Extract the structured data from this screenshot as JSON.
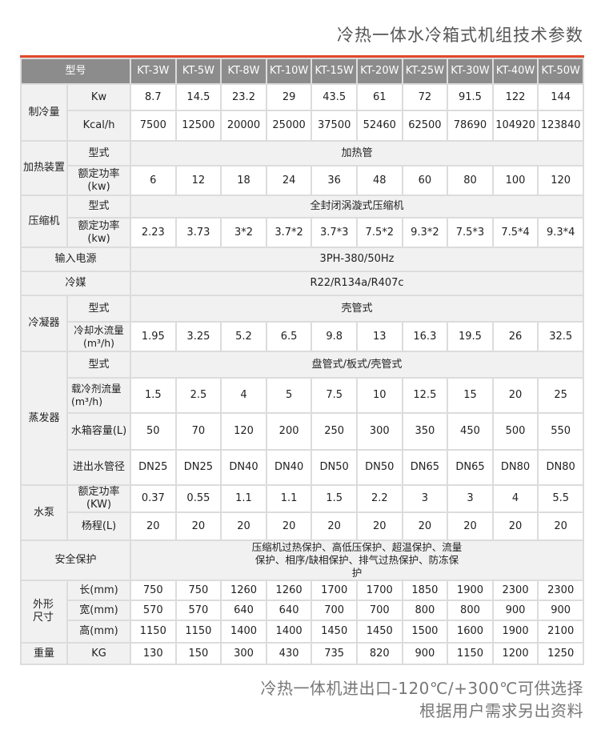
{
  "title": "冷热一体水冷箱式机组技术参数",
  "colors": {
    "accent": "#e2482a",
    "header_bg": "#8c8c8c",
    "label_bg": "#f1f1f1"
  },
  "header": {
    "label": "型号",
    "models": [
      "KT-3W",
      "KT-5W",
      "KT-8W",
      "KT-10W",
      "KT-15W",
      "KT-20W",
      "KT-25W",
      "KT-30W",
      "KT-40W",
      "KT-50W"
    ]
  },
  "groups": [
    {
      "name": "制冷量",
      "rows": [
        {
          "label": "Kw",
          "values": [
            "8.7",
            "14.5",
            "23.2",
            "29",
            "43.5",
            "61",
            "72",
            "91.5",
            "122",
            "144"
          ]
        },
        {
          "label": "Kcal/h",
          "values": [
            "7500",
            "12500",
            "20000",
            "25000",
            "37500",
            "52460",
            "62500",
            "78690",
            "104920",
            "123840"
          ]
        }
      ]
    },
    {
      "name": "加热装置",
      "rows": [
        {
          "label": "型式",
          "merged": "加热管"
        },
        {
          "label": "额定功率(kw)",
          "values": [
            "6",
            "12",
            "18",
            "24",
            "36",
            "48",
            "60",
            "80",
            "100",
            "120"
          ]
        }
      ]
    },
    {
      "name": "压缩机",
      "rows": [
        {
          "label": "型式",
          "merged": "全封闭涡漩式压缩机"
        },
        {
          "label": "额定功率(kw)",
          "values": [
            "2.23",
            "3.73",
            "3*2",
            "3.7*2",
            "3.7*3",
            "7.5*2",
            "9.3*2",
            "7.5*3",
            "7.5*4",
            "9.3*4"
          ]
        }
      ]
    },
    {
      "name": "输入电源",
      "merged": "3PH-380/50Hz"
    },
    {
      "name": "冷媒",
      "merged": "R22/R134a/R407c"
    },
    {
      "name": "冷凝器",
      "rows": [
        {
          "label": "型式",
          "merged": "壳管式"
        },
        {
          "label": "冷却水流量(m³/h)",
          "values": [
            "1.95",
            "3.25",
            "5.2",
            "6.5",
            "9.8",
            "13",
            "16.3",
            "19.5",
            "26",
            "32.5"
          ]
        }
      ]
    },
    {
      "name": "蒸发器",
      "rows": [
        {
          "label": "型式",
          "merged": "盘管式/板式/壳管式"
        },
        {
          "label": "载冷剂流量(m³/h)",
          "values": [
            "1.5",
            "2.5",
            "4",
            "5",
            "7.5",
            "10",
            "12.5",
            "15",
            "20",
            "25"
          ]
        },
        {
          "label": "水箱容量(L)",
          "values": [
            "50",
            "70",
            "120",
            "200",
            "250",
            "300",
            "350",
            "450",
            "500",
            "550"
          ]
        },
        {
          "label": "进出水管径",
          "values": [
            "DN25",
            "DN25",
            "DN40",
            "DN40",
            "DN50",
            "DN50",
            "DN65",
            "DN65",
            "DN80",
            "DN80"
          ]
        }
      ]
    },
    {
      "name": "水泵",
      "rows": [
        {
          "label": "额定功率(KW)",
          "values": [
            "0.37",
            "0.55",
            "1.1",
            "1.1",
            "1.5",
            "2.2",
            "3",
            "3",
            "4",
            "5.5"
          ]
        },
        {
          "label": "杨程(L)",
          "values": [
            "20",
            "20",
            "20",
            "20",
            "20",
            "20",
            "20",
            "20",
            "20",
            "20"
          ]
        }
      ]
    },
    {
      "name": "安全保护",
      "merged": "压缩机过热保护、高低压保护、超温保护、流量保护、相序/缺相保护、排气过热保护、防冻保护"
    },
    {
      "name": "外形尺寸",
      "rows": [
        {
          "label": "长(mm)",
          "values": [
            "750",
            "750",
            "1260",
            "1260",
            "1700",
            "1700",
            "1850",
            "1900",
            "2300",
            "2300"
          ]
        },
        {
          "label": "宽(mm)",
          "values": [
            "570",
            "570",
            "640",
            "640",
            "700",
            "700",
            "800",
            "800",
            "900",
            "900"
          ]
        },
        {
          "label": "高(mm)",
          "values": [
            "1150",
            "1150",
            "1400",
            "1400",
            "1450",
            "1450",
            "1500",
            "1600",
            "1900",
            "2100"
          ]
        }
      ]
    },
    {
      "name": "重量",
      "rows": [
        {
          "label": "KG",
          "values": [
            "130",
            "150",
            "300",
            "430",
            "735",
            "820",
            "900",
            "1150",
            "1200",
            "1250"
          ]
        }
      ]
    }
  ],
  "footer": {
    "line1": "冷热一体机进出口-120℃/+300℃可供选择",
    "line2": "根据用户需求另出资料"
  }
}
